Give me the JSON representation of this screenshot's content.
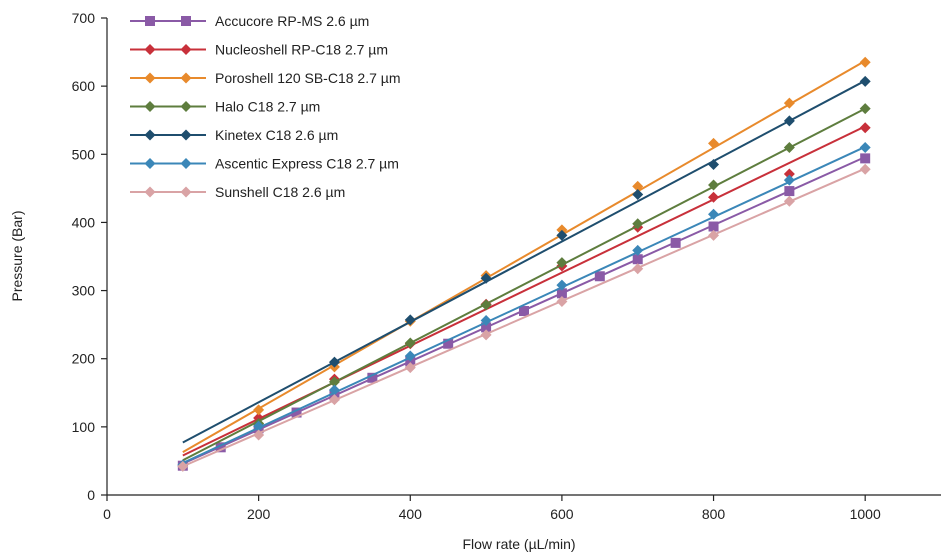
{
  "chart_data": {
    "type": "scatter",
    "title": "",
    "xlabel": "Flow rate (µL/min)",
    "ylabel": "Pressure (Bar)",
    "xlim": [
      0,
      1100
    ],
    "ylim": [
      0,
      700
    ],
    "xticks": [
      "0",
      "200",
      "400",
      "600",
      "800",
      "1000"
    ],
    "yticks": [
      "0",
      "100",
      "200",
      "300",
      "400",
      "500",
      "600",
      "700"
    ],
    "grid": false,
    "legend_position": "top-left",
    "series": [
      {
        "name": "Accucore RP-MS 2.6 µm",
        "color": "#8a5aa6",
        "marker": "square",
        "x": [
          100,
          150,
          200,
          250,
          300,
          350,
          400,
          450,
          500,
          550,
          600,
          650,
          700,
          750,
          800,
          900,
          1000
        ],
        "y": [
          43,
          70,
          98,
          121,
          146,
          172,
          196,
          222,
          246,
          270,
          296,
          321,
          346,
          370,
          394,
          446,
          494
        ],
        "fit": [
          [
            100,
            46
          ],
          [
            1000,
            496
          ]
        ]
      },
      {
        "name": "Nucleoshell RP-C18 2.7 µm",
        "color": "#c8303a",
        "marker": "diamond",
        "x": [
          200,
          300,
          400,
          500,
          600,
          700,
          800,
          900,
          1000
        ],
        "y": [
          113,
          170,
          222,
          280,
          336,
          393,
          437,
          471,
          539
        ],
        "fit": [
          [
            100,
            58
          ],
          [
            1000,
            541
          ]
        ]
      },
      {
        "name": "Poroshell 120 SB-C18 2.7 µm",
        "color": "#e88a2c",
        "marker": "diamond",
        "x": [
          200,
          300,
          400,
          500,
          600,
          700,
          800,
          900,
          1000
        ],
        "y": [
          125,
          188,
          255,
          322,
          389,
          453,
          516,
          575,
          635
        ],
        "fit": [
          [
            100,
            63
          ],
          [
            1000,
            637
          ]
        ]
      },
      {
        "name": "Halo C18 2.7 µm",
        "color": "#5e7d3e",
        "marker": "diamond",
        "x": [
          200,
          300,
          400,
          500,
          600,
          700,
          800,
          900,
          1000
        ],
        "y": [
          105,
          166,
          223,
          279,
          341,
          398,
          455,
          510,
          567
        ],
        "fit": [
          [
            100,
            51
          ],
          [
            1000,
            567
          ]
        ]
      },
      {
        "name": "Kinetex C18 2.6 µm",
        "color": "#1f4e6e",
        "marker": "diamond",
        "x": [
          300,
          400,
          500,
          600,
          700,
          800,
          900,
          1000
        ],
        "y": [
          195,
          257,
          318,
          381,
          441,
          485,
          549,
          607
        ],
        "fit": [
          [
            100,
            77
          ],
          [
            1000,
            608
          ]
        ]
      },
      {
        "name": "Ascentic Express C18 2.7 µm",
        "color": "#3b87b8",
        "marker": "diamond",
        "x": [
          100,
          200,
          300,
          400,
          500,
          600,
          700,
          800,
          900,
          1000
        ],
        "y": [
          44,
          101,
          154,
          204,
          256,
          308,
          359,
          412,
          462,
          510
        ],
        "fit": [
          [
            100,
            47
          ],
          [
            1000,
            511
          ]
        ]
      },
      {
        "name": "Sunshell C18 2.6 µm",
        "color": "#d9a3a5",
        "marker": "diamond",
        "x": [
          100,
          200,
          300,
          400,
          500,
          600,
          700,
          800,
          900,
          1000
        ],
        "y": [
          42,
          88,
          140,
          187,
          235,
          284,
          332,
          381,
          431,
          478
        ],
        "fit": [
          [
            100,
            42
          ],
          [
            1000,
            479
          ]
        ]
      }
    ]
  }
}
